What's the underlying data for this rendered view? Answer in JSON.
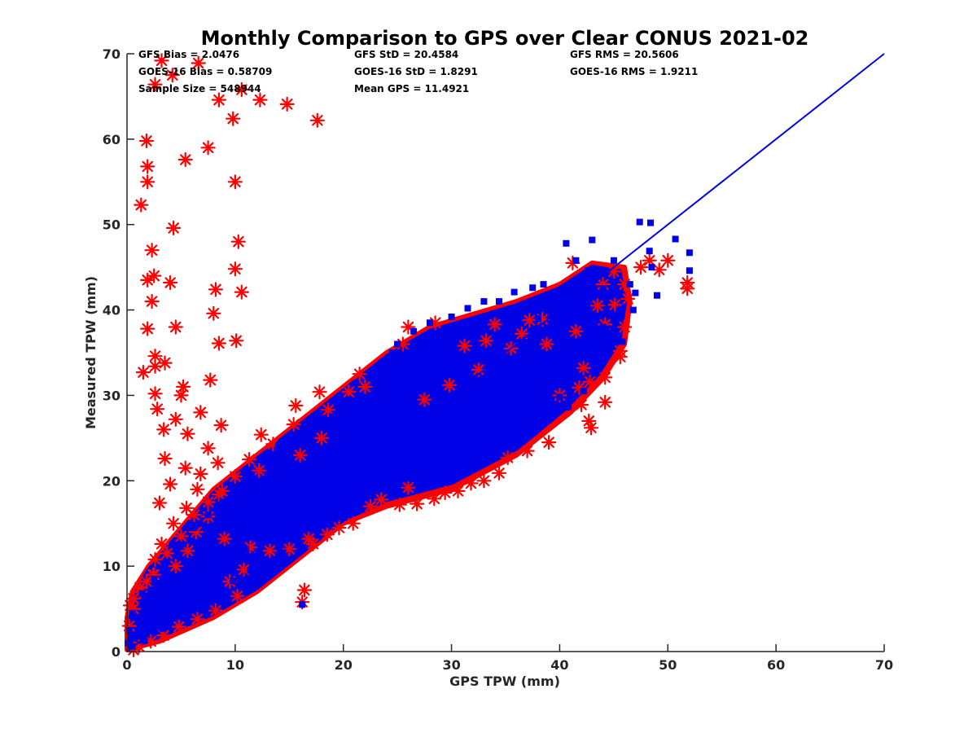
{
  "chart_data": {
    "type": "scatter",
    "title": "Monthly Comparison to GPS over Clear CONUS 2021-02",
    "xlabel": "GPS TPW (mm)",
    "ylabel": "Measured TPW (mm)",
    "xlim": [
      0,
      70
    ],
    "ylim": [
      0,
      70
    ],
    "xticks": [
      "0",
      "10",
      "20",
      "30",
      "40",
      "50",
      "60",
      "70"
    ],
    "yticks": [
      "0",
      "10",
      "20",
      "30",
      "40",
      "50",
      "60",
      "70"
    ],
    "grid": false,
    "legend": "none",
    "stats": [
      "GFS Bias = 2.0476",
      "GFS StD = 20.4584",
      "GFS RMS = 20.5606",
      "GOES-16 Bias = 0.58709",
      "GOES-16 StD = 1.8291",
      "GOES-16 RMS = 1.9211",
      "Sample Size = 548944",
      "Mean GPS = 11.4921"
    ],
    "reference_line": {
      "x": [
        0,
        70
      ],
      "y": [
        0,
        70
      ],
      "color": "#0000e6"
    },
    "series": [
      {
        "marker": "asterisk",
        "color": "#ff0000",
        "points": [
          [
            3.2,
            69.2
          ],
          [
            6.6,
            68.9
          ],
          [
            4.2,
            67.5
          ],
          [
            2.6,
            66.4
          ],
          [
            10.6,
            65.8
          ],
          [
            12.3,
            64.6
          ],
          [
            14.8,
            64.1
          ],
          [
            8.5,
            64.6
          ],
          [
            17.6,
            62.2
          ],
          [
            9.8,
            62.4
          ],
          [
            1.8,
            59.8
          ],
          [
            7.5,
            59.0
          ],
          [
            1.9,
            56.8
          ],
          [
            5.4,
            57.6
          ],
          [
            10.0,
            55.0
          ],
          [
            1.9,
            55.0
          ],
          [
            1.3,
            52.3
          ],
          [
            4.3,
            49.6
          ],
          [
            10.3,
            48.0
          ],
          [
            2.3,
            47.0
          ],
          [
            10.0,
            44.8
          ],
          [
            2.5,
            44.0
          ],
          [
            1.9,
            43.5
          ],
          [
            4.0,
            43.2
          ],
          [
            8.2,
            42.4
          ],
          [
            10.6,
            42.1
          ],
          [
            2.3,
            41.0
          ],
          [
            8.0,
            39.6
          ],
          [
            4.5,
            38.0
          ],
          [
            1.9,
            37.8
          ],
          [
            8.5,
            36.1
          ],
          [
            10.1,
            36.4
          ],
          [
            2.6,
            34.6
          ],
          [
            3.5,
            33.8
          ],
          [
            2.6,
            33.4
          ],
          [
            1.5,
            32.7
          ],
          [
            7.7,
            31.8
          ],
          [
            5.2,
            31.0
          ],
          [
            2.6,
            30.2
          ],
          [
            5.0,
            30.0
          ],
          [
            2.8,
            28.4
          ],
          [
            6.8,
            28.0
          ],
          [
            4.5,
            27.2
          ],
          [
            8.7,
            26.5
          ],
          [
            3.4,
            26.0
          ],
          [
            5.6,
            25.5
          ],
          [
            7.5,
            23.8
          ],
          [
            8.4,
            22.1
          ],
          [
            3.5,
            22.6
          ],
          [
            5.4,
            21.5
          ],
          [
            6.8,
            20.8
          ],
          [
            12.2,
            21.2
          ],
          [
            4.0,
            19.6
          ],
          [
            6.5,
            19.0
          ],
          [
            8.5,
            18.4
          ],
          [
            3.0,
            17.4
          ],
          [
            5.5,
            16.8
          ],
          [
            7.5,
            15.8
          ],
          [
            4.3,
            15.0
          ],
          [
            6.4,
            14.0
          ],
          [
            9.0,
            13.2
          ],
          [
            3.2,
            12.6
          ],
          [
            5.6,
            11.8
          ],
          [
            2.6,
            10.8
          ],
          [
            4.5,
            10.0
          ],
          [
            2.5,
            9.0
          ],
          [
            1.8,
            8.2
          ],
          [
            1.2,
            7.0
          ],
          [
            0.6,
            6.2
          ],
          [
            0.3,
            5.4
          ],
          [
            38.4,
            38.9
          ],
          [
            41.2,
            45.5
          ],
          [
            44.0,
            43.0
          ],
          [
            46.0,
            43.0
          ],
          [
            47.5,
            45.0
          ],
          [
            48.3,
            45.8
          ],
          [
            49.2,
            44.7
          ],
          [
            50.0,
            45.8
          ],
          [
            51.8,
            42.5
          ],
          [
            51.8,
            43.2
          ],
          [
            46.3,
            41.3
          ],
          [
            45.1,
            40.6
          ],
          [
            44.2,
            38.3
          ],
          [
            46.0,
            38.0
          ],
          [
            45.6,
            35.2
          ],
          [
            44.2,
            32.1
          ],
          [
            45.6,
            34.5
          ],
          [
            42.8,
            31.6
          ],
          [
            41.8,
            30.9
          ],
          [
            42.0,
            28.9
          ],
          [
            44.2,
            29.2
          ],
          [
            40.0,
            30.0
          ],
          [
            42.2,
            33.2
          ],
          [
            42.9,
            26.2
          ],
          [
            42.7,
            27.0
          ],
          [
            39.0,
            24.5
          ],
          [
            37.0,
            23.5
          ],
          [
            35.2,
            22.7
          ],
          [
            34.4,
            20.9
          ],
          [
            33.0,
            20.0
          ],
          [
            31.8,
            19.7
          ],
          [
            30.6,
            18.8
          ],
          [
            29.4,
            18.6
          ],
          [
            28.4,
            17.9
          ],
          [
            26.8,
            17.3
          ],
          [
            25.2,
            17.2
          ],
          [
            23.5,
            17.8
          ],
          [
            22.5,
            17.0
          ],
          [
            26.0,
            19.2
          ],
          [
            20.9,
            15.0
          ],
          [
            19.6,
            14.5
          ],
          [
            18.5,
            13.7
          ],
          [
            17.2,
            12.6
          ],
          [
            16.8,
            13.2
          ],
          [
            15.0,
            12.0
          ],
          [
            13.2,
            11.8
          ],
          [
            11.4,
            12.2
          ],
          [
            10.8,
            9.6
          ],
          [
            9.5,
            8.2
          ],
          [
            16.2,
            5.8
          ],
          [
            16.4,
            7.2
          ],
          [
            10.2,
            6.5
          ],
          [
            8.2,
            4.8
          ],
          [
            6.5,
            3.8
          ],
          [
            4.8,
            2.9
          ],
          [
            3.4,
            1.9
          ],
          [
            2.2,
            1.2
          ],
          [
            1.1,
            0.6
          ],
          [
            0.6,
            0.2
          ],
          [
            13.5,
            24.3
          ],
          [
            15.4,
            26.6
          ],
          [
            18.6,
            28.3
          ],
          [
            25.5,
            36.0
          ],
          [
            26.0,
            38.0
          ],
          [
            28.5,
            38.5
          ],
          [
            21.5,
            32.5
          ],
          [
            17.8,
            30.4
          ],
          [
            15.6,
            28.8
          ],
          [
            12.4,
            25.4
          ],
          [
            11.3,
            22.5
          ],
          [
            10.0,
            20.5
          ],
          [
            8.8,
            18.8
          ],
          [
            7.5,
            17.5
          ],
          [
            6.2,
            16.0
          ],
          [
            5.0,
            13.5
          ],
          [
            3.7,
            11.5
          ],
          [
            2.4,
            9.0
          ],
          [
            1.2,
            7.5
          ],
          [
            0.6,
            5.0
          ],
          [
            0.2,
            3.0
          ],
          [
            37.2,
            38.8
          ],
          [
            33.2,
            36.4
          ],
          [
            34.0,
            38.3
          ],
          [
            36.5,
            37.2
          ],
          [
            31.2,
            35.8
          ],
          [
            22.0,
            31.0
          ],
          [
            20.5,
            30.4
          ],
          [
            18.0,
            25.0
          ],
          [
            16.0,
            23.0
          ],
          [
            27.5,
            29.5
          ],
          [
            29.8,
            31.2
          ],
          [
            32.5,
            33.0
          ],
          [
            35.5,
            35.5
          ],
          [
            38.8,
            36.0
          ],
          [
            41.5,
            37.5
          ],
          [
            43.5,
            40.5
          ],
          [
            45.0,
            44.5
          ]
        ]
      },
      {
        "marker": "square",
        "color": "#0000e6",
        "points": [
          [
            47.4,
            50.3
          ],
          [
            48.4,
            50.2
          ],
          [
            52.0,
            46.7
          ],
          [
            52.0,
            44.6
          ],
          [
            50.7,
            48.3
          ],
          [
            48.3,
            46.9
          ],
          [
            43.0,
            48.2
          ],
          [
            40.6,
            47.8
          ],
          [
            41.5,
            45.8
          ],
          [
            42.6,
            44.6
          ],
          [
            45.0,
            45.8
          ],
          [
            48.5,
            45.0
          ],
          [
            49.0,
            41.7
          ],
          [
            46.8,
            40.0
          ],
          [
            44.8,
            39.5
          ],
          [
            44.3,
            37.8
          ],
          [
            45.8,
            36.3
          ],
          [
            42.5,
            35.8
          ],
          [
            43.1,
            34.2
          ],
          [
            41.5,
            32.6
          ],
          [
            42.2,
            30.5
          ],
          [
            40.0,
            29.8
          ],
          [
            40.8,
            28.6
          ],
          [
            37.0,
            28.0
          ],
          [
            36.0,
            25.0
          ],
          [
            34.8,
            24.0
          ],
          [
            33.0,
            23.0
          ],
          [
            31.4,
            22.4
          ],
          [
            29.8,
            21.4
          ],
          [
            27.8,
            20.8
          ],
          [
            26.2,
            20.3
          ],
          [
            24.2,
            19.6
          ],
          [
            22.4,
            18.8
          ],
          [
            20.8,
            18.0
          ],
          [
            19.3,
            16.0
          ],
          [
            17.5,
            15.0
          ],
          [
            15.2,
            13.2
          ],
          [
            14.4,
            11.6
          ],
          [
            12.8,
            10.5
          ],
          [
            16.2,
            5.5
          ],
          [
            11.4,
            9.5
          ],
          [
            9.8,
            8.3
          ],
          [
            8.0,
            6.8
          ],
          [
            6.4,
            5.5
          ],
          [
            4.8,
            4.3
          ],
          [
            3.3,
            2.7
          ],
          [
            1.6,
            1.3
          ],
          [
            0.5,
            0.6
          ],
          [
            20.5,
            29.5
          ],
          [
            21.0,
            28.8
          ],
          [
            22.8,
            31.5
          ],
          [
            24.0,
            33.5
          ],
          [
            24.5,
            35.0
          ],
          [
            25.0,
            36.0
          ],
          [
            26.5,
            37.5
          ],
          [
            28.0,
            38.5
          ],
          [
            30.0,
            39.2
          ],
          [
            31.5,
            40.2
          ],
          [
            33.0,
            41.0
          ],
          [
            34.4,
            41.0
          ],
          [
            38.5,
            43.0
          ],
          [
            35.8,
            42.1
          ],
          [
            37.5,
            42.6
          ],
          [
            19.0,
            27.5
          ],
          [
            17.5,
            26.2
          ],
          [
            15.8,
            25.0
          ],
          [
            14.0,
            24.0
          ],
          [
            13.0,
            22.5
          ],
          [
            11.5,
            20.5
          ],
          [
            10.0,
            19.0
          ],
          [
            8.8,
            17.5
          ],
          [
            7.5,
            16.0
          ],
          [
            6.2,
            14.5
          ],
          [
            5.0,
            12.5
          ],
          [
            3.7,
            10.5
          ],
          [
            2.5,
            8.5
          ],
          [
            1.4,
            6.8
          ],
          [
            0.5,
            4.5
          ],
          [
            0.2,
            2.5
          ],
          [
            0.1,
            1.0
          ],
          [
            27.0,
            35.0
          ],
          [
            29.0,
            36.0
          ],
          [
            32.0,
            38.0
          ],
          [
            35.0,
            38.0
          ],
          [
            38.0,
            39.0
          ],
          [
            40.5,
            39.5
          ],
          [
            42.0,
            41.5
          ],
          [
            44.0,
            42.5
          ],
          [
            46.5,
            43.0
          ],
          [
            30.5,
            33.5
          ],
          [
            28.0,
            31.5
          ],
          [
            26.0,
            30.0
          ],
          [
            24.5,
            27.0
          ],
          [
            22.0,
            25.0
          ],
          [
            20.0,
            23.0
          ],
          [
            18.0,
            21.0
          ],
          [
            16.0,
            19.5
          ],
          [
            14.0,
            18.0
          ],
          [
            12.0,
            15.5
          ],
          [
            10.0,
            13.5
          ],
          [
            8.0,
            11.0
          ],
          [
            6.0,
            9.0
          ],
          [
            4.0,
            7.0
          ],
          [
            2.0,
            4.0
          ],
          [
            33.5,
            29.0
          ],
          [
            36.5,
            31.0
          ],
          [
            39.0,
            33.5
          ],
          [
            41.0,
            35.5
          ],
          [
            43.5,
            37.5
          ],
          [
            45.5,
            40.0
          ],
          [
            47.0,
            42.0
          ],
          [
            44.0,
            38.0
          ],
          [
            42.0,
            36.0
          ],
          [
            38.0,
            34.5
          ],
          [
            35.0,
            33.0
          ],
          [
            32.0,
            30.0
          ],
          [
            29.0,
            27.0
          ],
          [
            26.0,
            24.5
          ],
          [
            23.0,
            22.5
          ],
          [
            20.0,
            20.0
          ],
          [
            17.0,
            17.5
          ],
          [
            14.0,
            15.0
          ],
          [
            11.0,
            12.0
          ],
          [
            8.0,
            9.0
          ],
          [
            5.0,
            6.0
          ],
          [
            2.0,
            2.8
          ]
        ]
      }
    ]
  }
}
